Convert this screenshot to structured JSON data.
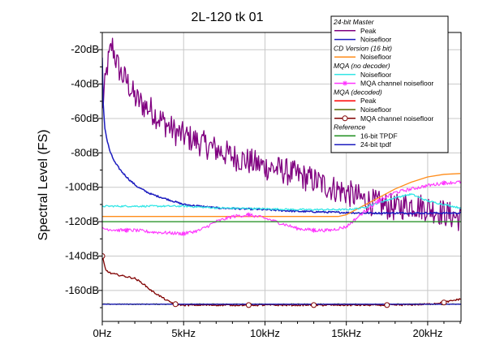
{
  "chart_data": {
    "type": "line",
    "title": "2L-120 tk 01",
    "xlabel": "",
    "ylabel": "Spectral Level (FS)",
    "xlim": [
      0,
      22050
    ],
    "ylim": [
      -178,
      -10
    ],
    "x_ticks": [
      {
        "value": 0,
        "label": "0Hz"
      },
      {
        "value": 5000,
        "label": "5kHz"
      },
      {
        "value": 10000,
        "label": "10kHz"
      },
      {
        "value": 15000,
        "label": "15kHz"
      },
      {
        "value": 20000,
        "label": "20kHz"
      }
    ],
    "y_ticks": [
      {
        "value": -20,
        "label": "-20dB"
      },
      {
        "value": -40,
        "label": "-40dB"
      },
      {
        "value": -60,
        "label": "-60dB"
      },
      {
        "value": -80,
        "label": "-80dB"
      },
      {
        "value": -100,
        "label": "-100dB"
      },
      {
        "value": -120,
        "label": "-120dB"
      },
      {
        "value": -140,
        "label": "-140dB"
      },
      {
        "value": -160,
        "label": "-160dB"
      }
    ],
    "grid": true,
    "legend_position": "top-right",
    "legend_groups": [
      {
        "group": "24-bit Master",
        "entries": [
          {
            "name": "Peak",
            "color": "#800080",
            "marker": "none"
          },
          {
            "name": "Noisefloor",
            "color": "#1c1cbf",
            "marker": "none"
          }
        ]
      },
      {
        "group": "CD Version (16 bit)",
        "entries": [
          {
            "name": "Noisefloor",
            "color": "#ff8c1a",
            "marker": "none"
          }
        ]
      },
      {
        "group": "MQA (no decoder)",
        "entries": [
          {
            "name": "Noisefloor",
            "color": "#33e6e6",
            "marker": "none"
          },
          {
            "name": "MQA channel noisefloor",
            "color": "#ff33ff",
            "marker": "star"
          }
        ]
      },
      {
        "group": "MQA (decoded)",
        "entries": [
          {
            "name": "Peak",
            "color": "#ff0000",
            "marker": "none"
          },
          {
            "name": "Noisefloor",
            "color": "#556b00",
            "marker": "none"
          },
          {
            "name": "MQA channel noisefloor",
            "color": "#800000",
            "marker": "circle"
          }
        ]
      },
      {
        "group": "Reference",
        "entries": [
          {
            "name": "16-bit TPDF",
            "color": "#1a8c1a",
            "marker": "none"
          },
          {
            "name": "24-bit tpdf",
            "color": "#1c1cbf",
            "marker": "none"
          }
        ]
      }
    ],
    "series": [
      {
        "id": "master-peak",
        "color": "#800080",
        "width": 1.3,
        "noise": 8,
        "x": [
          0,
          300,
          600,
          900,
          1200,
          1500,
          2000,
          2500,
          3000,
          3500,
          4000,
          4500,
          5000,
          5500,
          6000,
          7000,
          8000,
          9000,
          10000,
          11000,
          12000,
          13000,
          14000,
          15000,
          16000,
          17000,
          18000,
          19000,
          20000,
          21000,
          22000
        ],
        "y": [
          -55,
          -30,
          -17,
          -28,
          -35,
          -38,
          -48,
          -52,
          -55,
          -60,
          -64,
          -68,
          -70,
          -72,
          -74,
          -78,
          -82,
          -85,
          -88,
          -90,
          -93,
          -96,
          -100,
          -103,
          -107,
          -110,
          -112,
          -110,
          -112,
          -115,
          -118
        ]
      },
      {
        "id": "master-noisefloor",
        "color": "#1c1cbf",
        "width": 1.5,
        "noise": 0.5,
        "x": [
          0,
          50,
          150,
          300,
          500,
          800,
          1200,
          1700,
          2200,
          3000,
          4000,
          5000,
          7000,
          10000,
          12000,
          14000,
          16000,
          18000,
          20000,
          22000
        ],
        "y": [
          -25,
          -50,
          -65,
          -73,
          -80,
          -86,
          -91,
          -96,
          -100,
          -104,
          -107,
          -110,
          -112,
          -113,
          -114,
          -114.5,
          -115,
          -115,
          -115,
          -115
        ]
      },
      {
        "id": "cd-noisefloor",
        "color": "#ff8c1a",
        "width": 1.3,
        "noise": 0,
        "x": [
          0,
          14500,
          15000,
          16000,
          17000,
          18000,
          19000,
          20000,
          21000,
          22000
        ],
        "y": [
          -117,
          -117,
          -116,
          -111,
          -106,
          -101,
          -97,
          -94,
          -92.5,
          -92
        ]
      },
      {
        "id": "mqa-nodec-noisefloor",
        "color": "#33e6e6",
        "width": 1.3,
        "noise": 0.5,
        "x": [
          0,
          5000,
          7000,
          10000,
          12000,
          14000,
          15000,
          16000,
          17000,
          18000,
          19000,
          20000,
          22000
        ],
        "y": [
          -111,
          -111,
          -112,
          -112.5,
          -113,
          -113,
          -113,
          -112,
          -109,
          -106,
          -104,
          -108,
          -112
        ]
      },
      {
        "id": "mqa-channel-nodec",
        "color": "#ff33ff",
        "width": 1.1,
        "noise": 1,
        "x": [
          0,
          1000,
          2000,
          3000,
          4000,
          5000,
          6000,
          7000,
          8000,
          9000,
          10000,
          11000,
          12000,
          13000,
          14000,
          15000,
          16000,
          17000,
          18000,
          19000,
          20000,
          21000,
          22000
        ],
        "y": [
          -124,
          -125,
          -125,
          -126,
          -126.5,
          -127,
          -125,
          -120,
          -117,
          -116,
          -118,
          -121,
          -124,
          -125,
          -125,
          -123,
          -115,
          -108,
          -103,
          -101,
          -99,
          -97.5,
          -97
        ]
      },
      {
        "id": "ref-16bit",
        "color": "#1a8c1a",
        "width": 1.3,
        "noise": 0,
        "x": [
          0,
          22050
        ],
        "y": [
          -120,
          -120
        ]
      },
      {
        "id": "mqa-dec-noisefloor",
        "color": "#556b00",
        "width": 1.2,
        "noise": 0.3,
        "x": [
          0,
          22050
        ],
        "y": [
          -168,
          -168
        ]
      },
      {
        "id": "mqa-dec-channel",
        "color": "#800000",
        "width": 1.3,
        "noise": 0.5,
        "x": [
          0,
          200,
          500,
          1000,
          1500,
          2000,
          2500,
          3000,
          3500,
          4000,
          4500,
          5000,
          6000,
          8000,
          10000,
          12000,
          14000,
          16000,
          18000,
          20000,
          21000,
          22000
        ],
        "y": [
          -140,
          -148,
          -150,
          -151,
          -152,
          -153,
          -156,
          -160,
          -163,
          -166,
          -168,
          -168.5,
          -168.5,
          -168.5,
          -168.5,
          -168.5,
          -168.5,
          -168.5,
          -168.5,
          -168,
          -167,
          -165
        ]
      },
      {
        "id": "ref-24bit",
        "color": "#1c1cbf",
        "width": 1.4,
        "noise": 0,
        "x": [
          0,
          22050
        ],
        "y": [
          -168,
          -168
        ]
      }
    ]
  }
}
